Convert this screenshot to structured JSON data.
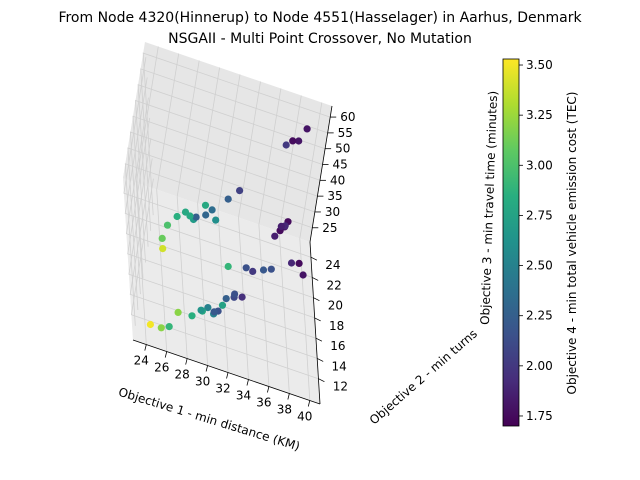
{
  "chart_data": {
    "type": "scatter3d",
    "title_line1": "From Node 4320(Hinnerup) to Node 4551(Hasselager) in Aarhus, Denmark",
    "title_line2": "NSGAII - Multi Point Crossover, No Mutation",
    "xlabel": "Objective 1 - min distance (KM)",
    "ylabel": "Objective 2 - min turns",
    "zlabel": "Objective 3 - min travel time (minutes)",
    "clabel": "Objective 4 - min total vehicle emission cost (TEC)",
    "xlim": [
      22.7,
      41
    ],
    "ylim": [
      9.5,
      25.5
    ],
    "zlim": [
      20.5,
      63.5
    ],
    "clim": [
      1.7,
      3.53
    ],
    "xticks": [
      24,
      26,
      28,
      30,
      32,
      34,
      36,
      38,
      40
    ],
    "yticks": [
      12,
      14,
      16,
      18,
      20,
      22,
      24
    ],
    "zticks": [
      25,
      30,
      35,
      40,
      45,
      50,
      55,
      60
    ],
    "cticks": [
      1.75,
      2.0,
      2.25,
      2.5,
      2.75,
      3.0,
      3.25,
      3.5
    ],
    "grid": true,
    "colormap": "viridis",
    "points": [
      [
        24.5,
        11.5,
        45,
        3.4
      ],
      [
        24.3,
        11.5,
        48,
        3.1
      ],
      [
        24.7,
        12,
        51,
        3.0
      ],
      [
        25.5,
        12.2,
        54,
        2.85
      ],
      [
        26.3,
        12.6,
        55,
        2.8
      ],
      [
        26.8,
        12.7,
        54,
        2.8
      ],
      [
        27.2,
        12.8,
        53,
        2.7
      ],
      [
        27.4,
        12.8,
        54,
        2.25
      ],
      [
        28.3,
        13,
        55,
        2.3
      ],
      [
        28.2,
        13.3,
        57,
        2.8
      ],
      [
        28.9,
        13.4,
        56,
        2.35
      ],
      [
        29.2,
        12.5,
        56,
        2.6
      ],
      [
        30.3,
        13.7,
        60,
        2.25
      ],
      [
        31.2,
        13.6,
        64,
        2.05
      ],
      [
        35.3,
        13.5,
        44,
        2.15
      ],
      [
        34.8,
        14.5,
        40,
        2.2
      ],
      [
        37.5,
        15.5,
        42,
        1.9
      ],
      [
        38.4,
        16.4,
        40,
        1.75
      ],
      [
        38.8,
        15.7,
        39,
        1.8
      ],
      [
        24.5,
        11.5,
        21,
        3.5
      ],
      [
        25.5,
        11.2,
        22,
        3.2
      ],
      [
        26.3,
        11.6,
        22,
        2.9
      ],
      [
        27.2,
        13.0,
        23,
        3.2
      ],
      [
        28.5,
        12.8,
        24,
        2.85
      ],
      [
        29.5,
        13.3,
        25,
        2.8
      ],
      [
        29.3,
        13.0,
        26,
        2.65
      ],
      [
        30.0,
        13.5,
        26,
        2.5
      ],
      [
        30.6,
        13.4,
        25,
        2.5
      ],
      [
        30.6,
        13.3,
        26,
        2.2
      ],
      [
        31.0,
        13.5,
        26,
        2.15
      ],
      [
        31.4,
        13.9,
        27,
        2.75
      ],
      [
        31.6,
        13.7,
        30,
        2.25
      ],
      [
        32.4,
        14.1,
        30,
        2.1
      ],
      [
        32.4,
        14.1,
        31,
        2.15
      ],
      [
        33.2,
        14.4,
        30,
        1.95
      ],
      [
        32.0,
        17.0,
        30,
        2.9
      ],
      [
        34.0,
        18.5,
        27,
        2.15
      ],
      [
        34.7,
        18.7,
        26,
        2.0
      ],
      [
        36.7,
        21.0,
        32,
        1.85
      ],
      [
        37.2,
        21.4,
        33,
        1.75
      ],
      [
        37.2,
        21.2,
        35,
        1.85
      ],
      [
        37.6,
        21.4,
        35,
        1.9
      ],
      [
        37.6,
        21.6,
        34,
        1.8
      ],
      [
        37.9,
        21.9,
        35,
        1.75
      ],
      [
        36.5,
        21.5,
        59,
        2.0
      ],
      [
        37.1,
        21.8,
        60,
        1.75
      ],
      [
        37.7,
        22.0,
        60,
        1.8
      ],
      [
        38.4,
        22.5,
        63,
        1.8
      ]
    ]
  }
}
